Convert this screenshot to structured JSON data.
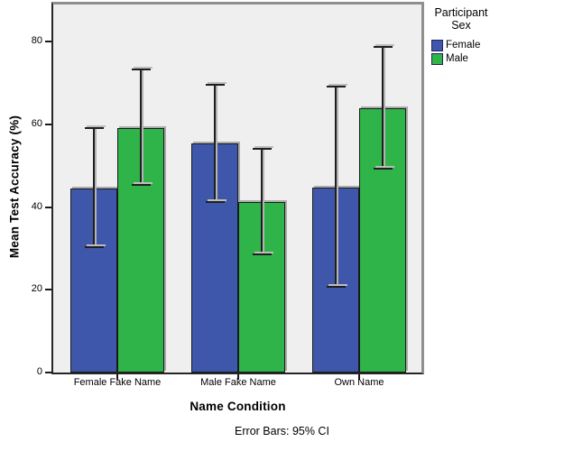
{
  "chart_data": {
    "type": "bar",
    "title": "",
    "xlabel": "Name Condition",
    "ylabel": "Mean Test Accuracy (%)",
    "footnote": "Error Bars: 95% CI",
    "error_bar_type": "95% CI",
    "ylim": [
      0,
      89
    ],
    "yticks": [
      0,
      20,
      40,
      60,
      80
    ],
    "grid": false,
    "plot_bg": "#EFEFEF",
    "legend": {
      "title": "Participant Sex",
      "position": "top-right-outside"
    },
    "categories": [
      "Female Fake Name",
      "Male Fake Name",
      "Own Name"
    ],
    "series": [
      {
        "name": "Female",
        "color": "#3E57AA",
        "values": [
          44.5,
          55.4,
          44.8
        ],
        "ci_low": [
          30.4,
          41.3,
          20.8
        ],
        "ci_high": [
          59.1,
          69.5,
          69.1
        ]
      },
      {
        "name": "Male",
        "color": "#2FB44A",
        "values": [
          59.2,
          41.2,
          63.9
        ],
        "ci_low": [
          45.3,
          28.5,
          49.4
        ],
        "ci_high": [
          73.2,
          54.1,
          78.8
        ]
      }
    ]
  }
}
